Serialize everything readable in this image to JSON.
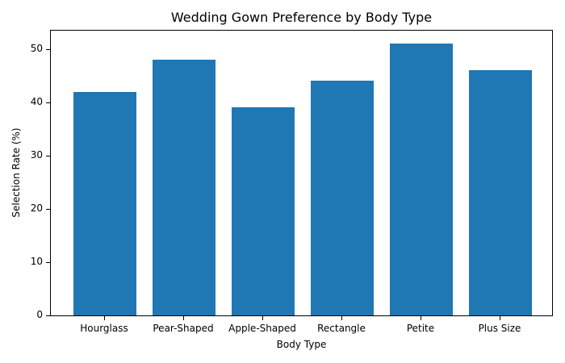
{
  "chart_data": {
    "type": "bar",
    "title": "Wedding Gown Preference by Body Type",
    "xlabel": "Body Type",
    "ylabel": "Selection Rate (%)",
    "categories": [
      "Hourglass",
      "Pear-Shaped",
      "Apple-Shaped",
      "Rectangle",
      "Petite",
      "Plus Size"
    ],
    "values": [
      42,
      48,
      39,
      44,
      51,
      46
    ],
    "ylim": [
      0,
      53.6
    ],
    "yticks": [
      0,
      10,
      20,
      30,
      40,
      50
    ],
    "grid": false,
    "legend": null,
    "bar_color": "#1f77b4"
  }
}
